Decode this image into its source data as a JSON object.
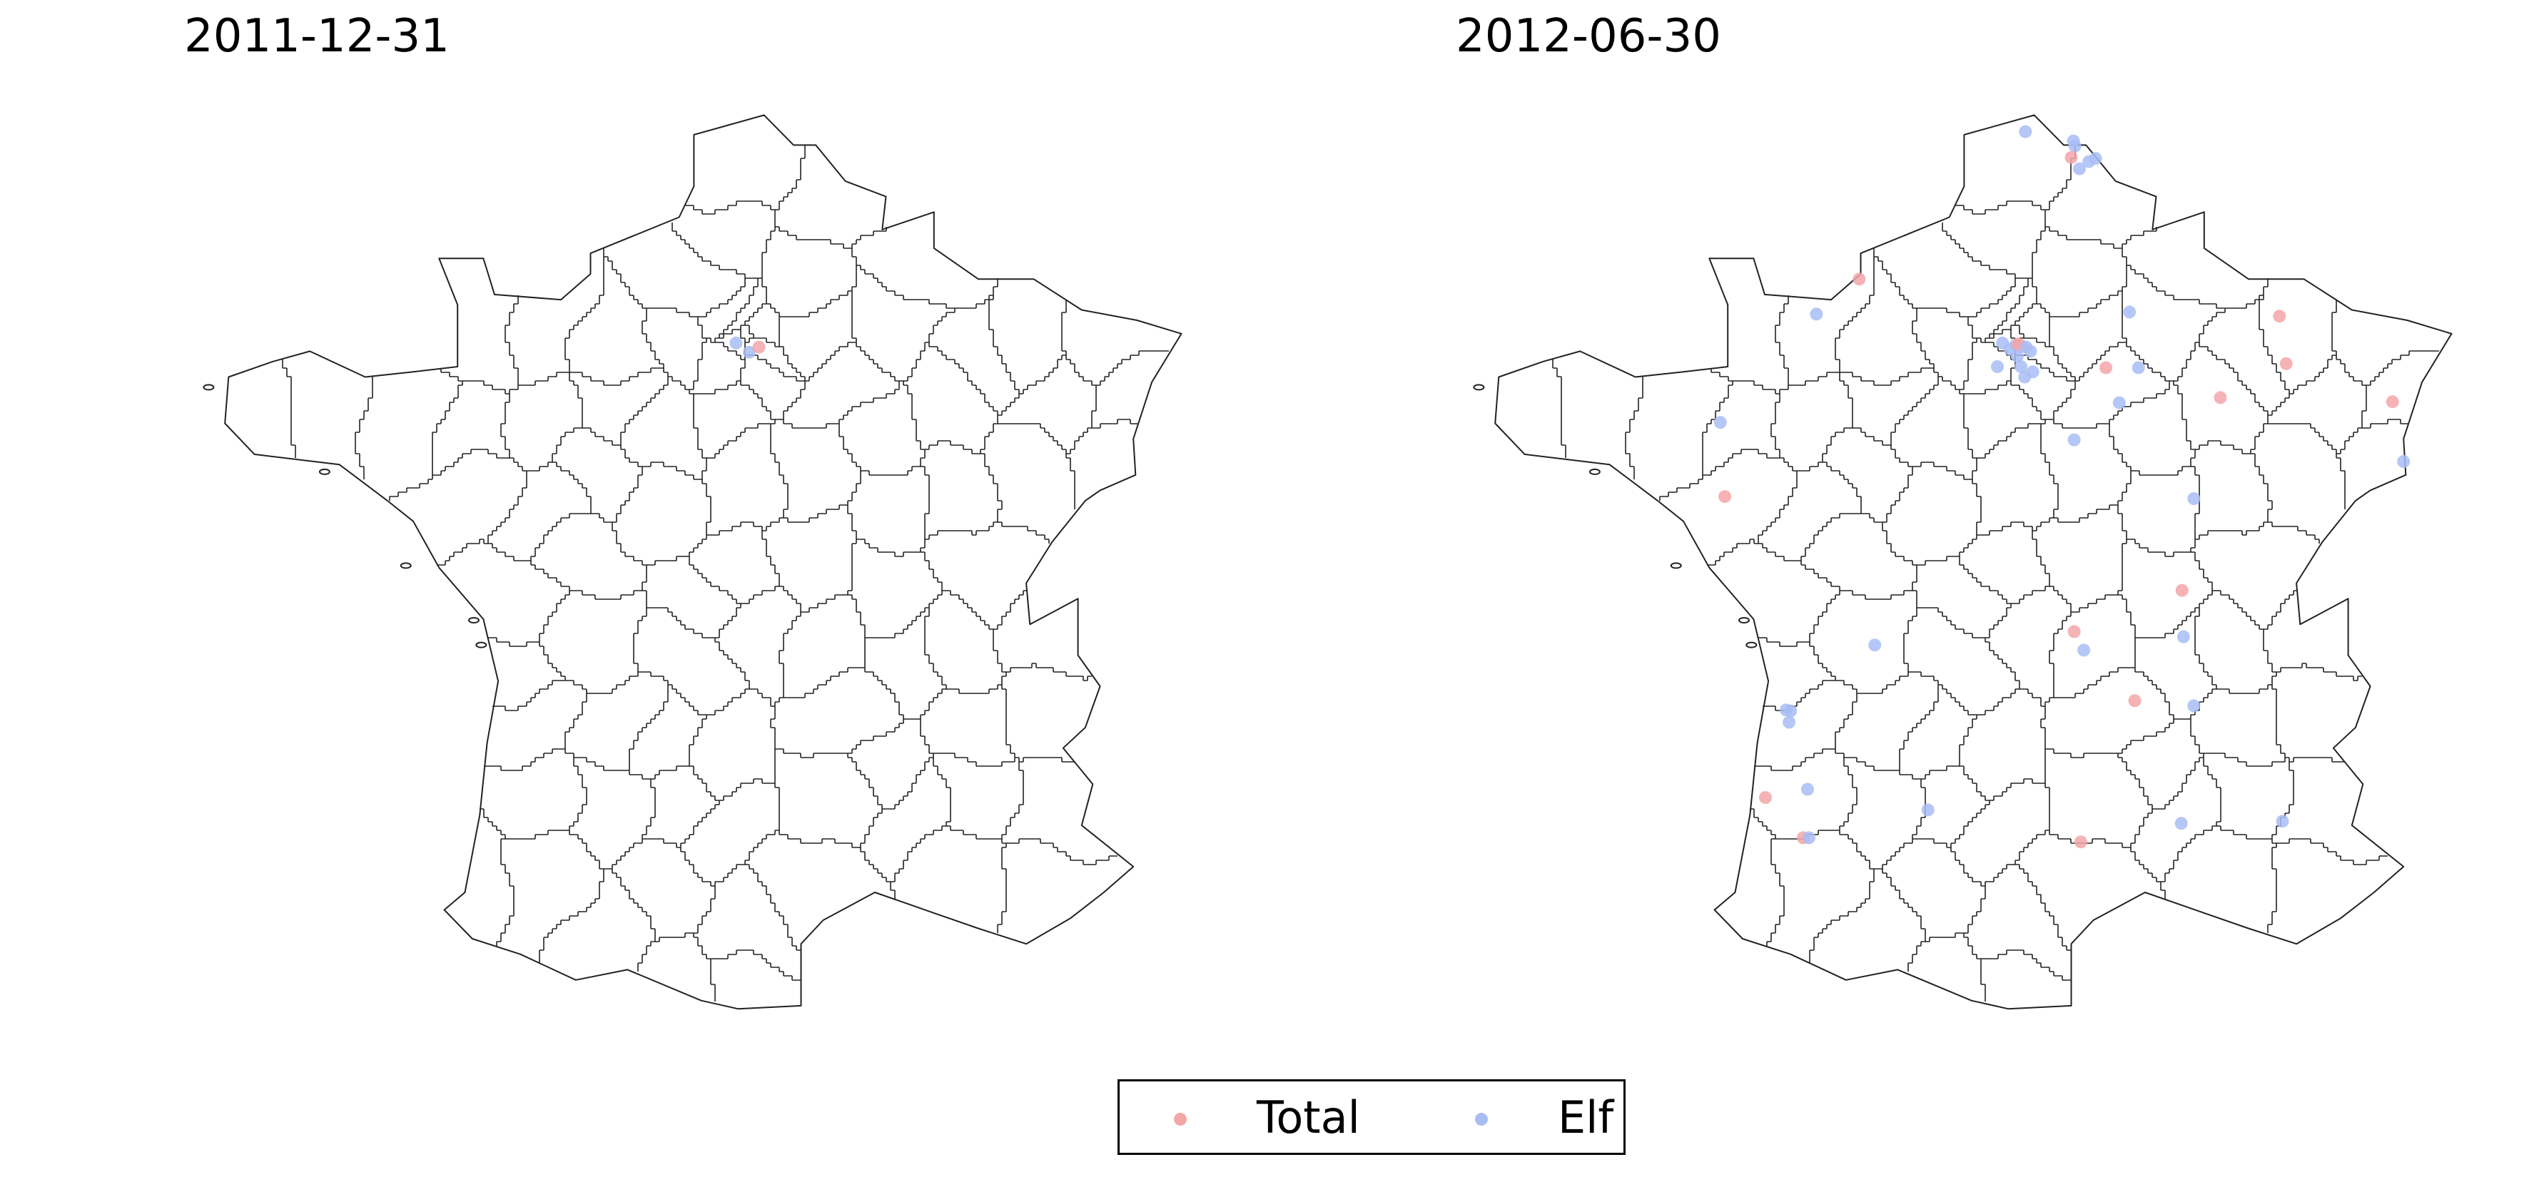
{
  "panels": [
    {
      "title": "2011-12-31",
      "points": [
        {
          "series": "Elf",
          "lon": 2.17,
          "lat": 48.88
        },
        {
          "series": "Elf",
          "lon": 2.35,
          "lat": 48.79
        },
        {
          "series": "Total",
          "lon": 2.48,
          "lat": 48.84
        }
      ]
    },
    {
      "title": "2012-06-30",
      "points": [
        {
          "series": "Elf",
          "lon": 2.43,
          "lat": 50.93
        },
        {
          "series": "Elf",
          "lon": 3.08,
          "lat": 50.84
        },
        {
          "series": "Elf",
          "lon": 3.1,
          "lat": 50.79
        },
        {
          "series": "Total",
          "lon": 3.05,
          "lat": 50.68
        },
        {
          "series": "Elf",
          "lon": 3.16,
          "lat": 50.57
        },
        {
          "series": "Elf",
          "lon": 3.29,
          "lat": 50.64
        },
        {
          "series": "Elf",
          "lon": 3.38,
          "lat": 50.67
        },
        {
          "series": "Total",
          "lon": 0.18,
          "lat": 49.5
        },
        {
          "series": "Elf",
          "lon": -0.4,
          "lat": 49.16
        },
        {
          "series": "Elf",
          "lon": 3.84,
          "lat": 49.18
        },
        {
          "series": "Total",
          "lon": 5.87,
          "lat": 49.14
        },
        {
          "series": "Elf",
          "lon": 2.12,
          "lat": 48.88
        },
        {
          "series": "Elf",
          "lon": 2.22,
          "lat": 48.82
        },
        {
          "series": "Elf",
          "lon": 2.3,
          "lat": 48.86
        },
        {
          "series": "Total",
          "lon": 2.33,
          "lat": 48.87
        },
        {
          "series": "Total",
          "lon": 2.38,
          "lat": 48.85
        },
        {
          "series": "Elf",
          "lon": 2.44,
          "lat": 48.84
        },
        {
          "series": "Elf",
          "lon": 2.5,
          "lat": 48.8
        },
        {
          "series": "Elf",
          "lon": 2.32,
          "lat": 48.75
        },
        {
          "series": "Elf",
          "lon": 2.37,
          "lat": 48.65
        },
        {
          "series": "Elf",
          "lon": 2.53,
          "lat": 48.6
        },
        {
          "series": "Elf",
          "lon": 2.42,
          "lat": 48.55
        },
        {
          "series": "Elf",
          "lon": 2.05,
          "lat": 48.65
        },
        {
          "series": "Total",
          "lon": 3.52,
          "lat": 48.64
        },
        {
          "series": "Elf",
          "lon": 3.96,
          "lat": 48.64
        },
        {
          "series": "Total",
          "lon": 5.96,
          "lat": 48.68
        },
        {
          "series": "Elf",
          "lon": 3.7,
          "lat": 48.3
        },
        {
          "series": "Total",
          "lon": 5.07,
          "lat": 48.35
        },
        {
          "series": "Total",
          "lon": 7.4,
          "lat": 48.31
        },
        {
          "series": "Elf",
          "lon": -1.7,
          "lat": 48.11
        },
        {
          "series": "Elf",
          "lon": 3.09,
          "lat": 47.94
        },
        {
          "series": "Elf",
          "lon": 7.55,
          "lat": 47.73
        },
        {
          "series": "Total",
          "lon": -1.64,
          "lat": 47.39
        },
        {
          "series": "Elf",
          "lon": 4.71,
          "lat": 47.37
        },
        {
          "series": "Total",
          "lon": 4.55,
          "lat": 46.48
        },
        {
          "series": "Total",
          "lon": 3.09,
          "lat": 46.08
        },
        {
          "series": "Elf",
          "lon": 4.57,
          "lat": 46.03
        },
        {
          "series": "Elf",
          "lon": 0.39,
          "lat": 45.95
        },
        {
          "series": "Elf",
          "lon": 3.22,
          "lat": 45.9
        },
        {
          "series": "Total",
          "lon": 3.91,
          "lat": 45.41
        },
        {
          "series": "Elf",
          "lon": 4.71,
          "lat": 45.36
        },
        {
          "series": "Elf",
          "lon": -0.81,
          "lat": 45.32
        },
        {
          "series": "Elf",
          "lon": -0.75,
          "lat": 45.31
        },
        {
          "series": "Elf",
          "lon": -0.77,
          "lat": 45.2
        },
        {
          "series": "Elf",
          "lon": -0.52,
          "lat": 44.55
        },
        {
          "series": "Total",
          "lon": -1.09,
          "lat": 44.47
        },
        {
          "series": "Elf",
          "lon": 1.11,
          "lat": 44.35
        },
        {
          "series": "Elf",
          "lon": 5.91,
          "lat": 44.24
        },
        {
          "series": "Elf",
          "lon": 4.54,
          "lat": 44.22
        },
        {
          "series": "Total",
          "lon": -0.58,
          "lat": 44.08
        },
        {
          "series": "Elf",
          "lon": -0.5,
          "lat": 44.08
        },
        {
          "series": "Total",
          "lon": 3.18,
          "lat": 44.04
        }
      ]
    }
  ],
  "legend": {
    "entries": [
      {
        "label": "Total",
        "color": "#f4a6a8"
      },
      {
        "label": "Elf",
        "color": "#a8bdf4"
      }
    ],
    "placement": "bottom-center"
  },
  "colors": {
    "total": "#f4a6a8",
    "elf": "#a8bdf4",
    "boundary": "#222222"
  },
  "legend_markers": {
    "total_icon": "pink-dot",
    "elf_icon": "blue-dot"
  }
}
